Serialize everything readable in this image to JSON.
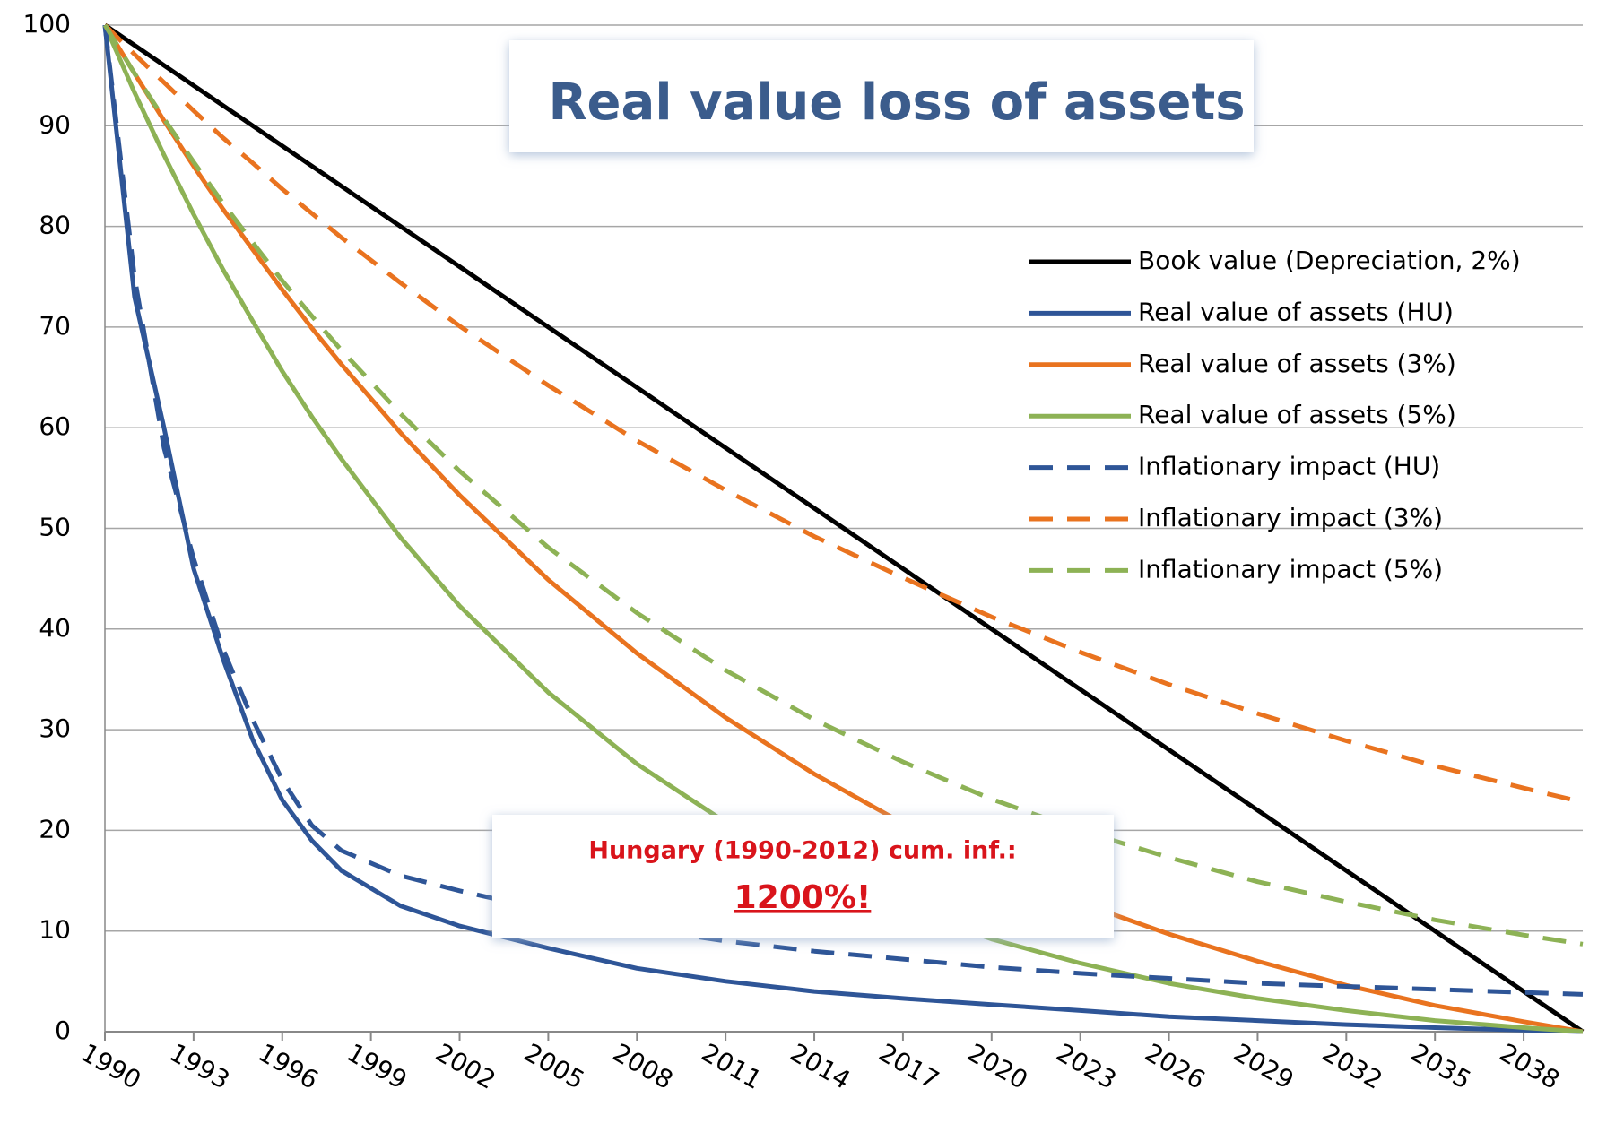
{
  "chart_data": {
    "type": "line",
    "title": "Real value loss  of assets",
    "annotation": "Hungary (1990-2012) cum. inf.:",
    "annotation_value": "1200%!",
    "x": [
      1990,
      1991,
      1992,
      1993,
      1994,
      1995,
      1996,
      1997,
      1998,
      2000,
      2002,
      2005,
      2008,
      2011,
      2014,
      2017,
      2020,
      2023,
      2026,
      2029,
      2032,
      2035,
      2038,
      2040
    ],
    "xlim": [
      1990,
      2040
    ],
    "xticks": [
      1990,
      1993,
      1996,
      1999,
      2002,
      2005,
      2008,
      2011,
      2014,
      2017,
      2020,
      2023,
      2026,
      2029,
      2032,
      2035,
      2038
    ],
    "ylim": [
      0,
      100
    ],
    "yticks": [
      0,
      10,
      20,
      30,
      40,
      50,
      60,
      70,
      80,
      90,
      100
    ],
    "grid": true,
    "legend": "right",
    "series": [
      {
        "name": "Book value (Depreciation, 2%)",
        "color": "#000000",
        "dash": false,
        "values": [
          100,
          98,
          96,
          94,
          92,
          90,
          88,
          86,
          84,
          80,
          76,
          70,
          64,
          58,
          52,
          46,
          40,
          34,
          28,
          22,
          16,
          10,
          4,
          0
        ]
      },
      {
        "name": "Real value of assets (HU)",
        "color": "#2e5597",
        "dash": false,
        "values": [
          100,
          73,
          60,
          46,
          37,
          29,
          23,
          19,
          16,
          12.5,
          10.5,
          8.3,
          6.3,
          5,
          4,
          3.3,
          2.7,
          2.1,
          1.5,
          1.1,
          0.7,
          0.4,
          0.15,
          0
        ]
      },
      {
        "name": "Real value of assets (3%)",
        "color": "#e9731f",
        "dash": false,
        "values": [
          100,
          95.2,
          90.5,
          86.0,
          81.7,
          77.7,
          73.7,
          69.9,
          66.3,
          59.5,
          53.3,
          44.9,
          37.6,
          31.2,
          25.6,
          20.7,
          16.5,
          12.8,
          9.7,
          7.0,
          4.6,
          2.6,
          1.0,
          0
        ]
      },
      {
        "name": "Real value of assets (5%)",
        "color": "#8db255",
        "dash": false,
        "values": [
          100,
          93.3,
          87.1,
          81.2,
          75.7,
          70.6,
          65.6,
          61.1,
          56.9,
          49.1,
          42.3,
          33.7,
          26.6,
          20.8,
          16.1,
          12.3,
          9.2,
          6.8,
          4.8,
          3.3,
          2.1,
          1.1,
          0.4,
          0
        ]
      },
      {
        "name": "Inflationary impact (HU)",
        "color": "#2e5597",
        "dash": true,
        "values": [
          100,
          75,
          58,
          47,
          38,
          31,
          25,
          20.5,
          18,
          15.5,
          14,
          12,
          10.3,
          9,
          8,
          7.2,
          6.4,
          5.8,
          5.3,
          4.8,
          4.5,
          4.2,
          3.9,
          3.7
        ]
      },
      {
        "name": "Inflationary impact (3%)",
        "color": "#e9731f",
        "dash": true,
        "values": [
          100,
          97.1,
          94.3,
          91.5,
          88.8,
          86.3,
          83.7,
          81.3,
          78.9,
          74.4,
          70.1,
          64.2,
          58.7,
          53.8,
          49.2,
          45.1,
          41.2,
          37.7,
          34.5,
          31.6,
          28.9,
          26.4,
          24.2,
          22.8
        ]
      },
      {
        "name": "Inflationary impact (5%)",
        "color": "#8db255",
        "dash": true,
        "values": [
          100,
          95.2,
          90.7,
          86.4,
          82.3,
          78.4,
          74.6,
          71.1,
          67.7,
          61.4,
          55.7,
          48.1,
          41.6,
          35.9,
          31.0,
          26.8,
          23.1,
          20.0,
          17.3,
          14.9,
          12.9,
          11.1,
          9.6,
          8.7
        ]
      }
    ]
  }
}
